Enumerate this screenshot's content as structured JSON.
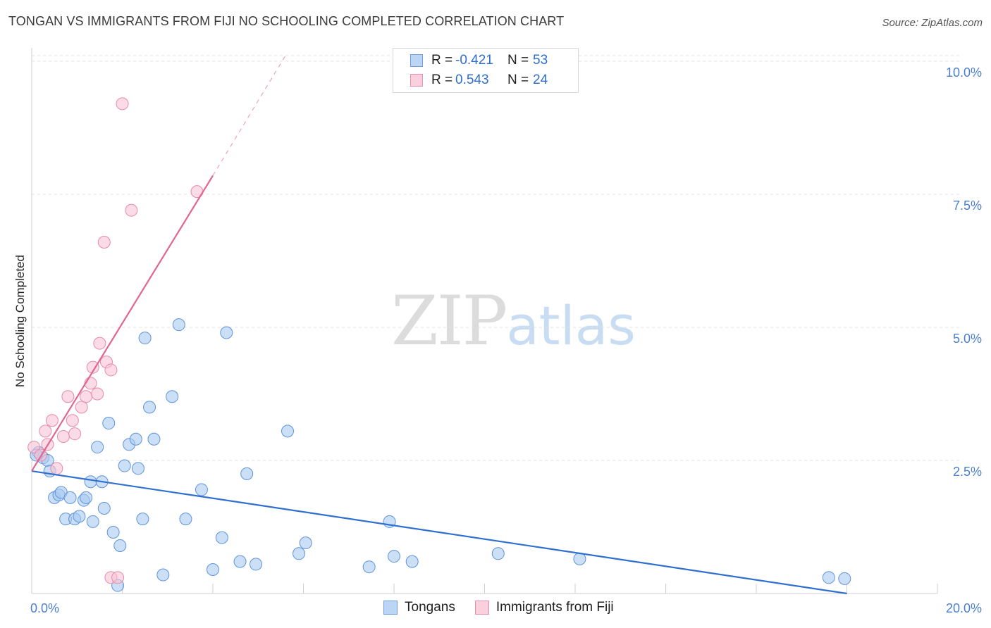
{
  "header": {
    "title": "TONGAN VS IMMIGRANTS FROM FIJI NO SCHOOLING COMPLETED CORRELATION CHART",
    "source": "Source: ZipAtlas.com"
  },
  "watermark": {
    "zip": "ZIP",
    "atlas": "atlas"
  },
  "legend": {
    "r_label": "R =",
    "n_label": "N =",
    "rows": [
      {
        "name": "Tongans",
        "r": "-0.421",
        "n": "53",
        "color": "#a9c9f0",
        "border": "#6f9fe0"
      },
      {
        "name": "Immigrants from Fiji",
        "r": "0.543",
        "n": "24",
        "color": "#f8c3d3",
        "border": "#ea8fae"
      }
    ]
  },
  "chart_data": {
    "type": "scatter",
    "title": "TONGAN VS IMMIGRANTS FROM FIJI NO SCHOOLING COMPLETED CORRELATION CHART",
    "xlabel": "",
    "ylabel": "No Schooling Completed",
    "xlim": [
      0,
      20
    ],
    "ylim": [
      0,
      10.25
    ],
    "x_tick_labels": [
      {
        "value": 0,
        "label": "0.0%"
      },
      {
        "value": 20,
        "label": "20.0%"
      }
    ],
    "y_tick_labels": [
      {
        "value": 2.5,
        "label": "2.5%"
      },
      {
        "value": 5.0,
        "label": "5.0%"
      },
      {
        "value": 7.5,
        "label": "7.5%"
      },
      {
        "value": 10.0,
        "label": "10.0%"
      }
    ],
    "series": [
      {
        "name": "Tongans",
        "color": "#a9c9f0",
        "stroke": "#5f93dc",
        "trend_color": "#2f6fd0",
        "trend": {
          "x0": 0,
          "y0": 2.3,
          "x1": 18.0,
          "y1": 0.0
        },
        "points": [
          [
            0.15,
            2.65
          ],
          [
            0.25,
            2.55
          ],
          [
            0.35,
            2.5
          ],
          [
            0.4,
            2.3
          ],
          [
            0.5,
            1.8
          ],
          [
            0.6,
            1.85
          ],
          [
            0.65,
            1.9
          ],
          [
            0.75,
            1.4
          ],
          [
            0.85,
            1.8
          ],
          [
            0.95,
            1.4
          ],
          [
            1.05,
            1.45
          ],
          [
            1.15,
            1.75
          ],
          [
            1.2,
            1.8
          ],
          [
            1.3,
            2.1
          ],
          [
            1.35,
            1.35
          ],
          [
            1.45,
            2.75
          ],
          [
            1.55,
            2.1
          ],
          [
            1.6,
            1.6
          ],
          [
            1.7,
            3.2
          ],
          [
            1.8,
            1.15
          ],
          [
            1.9,
            0.15
          ],
          [
            1.95,
            0.9
          ],
          [
            2.05,
            2.4
          ],
          [
            2.15,
            2.8
          ],
          [
            2.3,
            2.9
          ],
          [
            2.35,
            2.35
          ],
          [
            2.45,
            1.4
          ],
          [
            2.5,
            4.8
          ],
          [
            2.6,
            3.5
          ],
          [
            2.7,
            2.9
          ],
          [
            2.9,
            0.35
          ],
          [
            3.1,
            3.7
          ],
          [
            3.25,
            5.05
          ],
          [
            3.4,
            1.4
          ],
          [
            3.75,
            1.95
          ],
          [
            4.0,
            0.45
          ],
          [
            4.2,
            1.05
          ],
          [
            4.3,
            4.9
          ],
          [
            4.6,
            0.6
          ],
          [
            4.75,
            2.25
          ],
          [
            4.95,
            0.55
          ],
          [
            5.65,
            3.05
          ],
          [
            5.9,
            0.75
          ],
          [
            6.05,
            0.95
          ],
          [
            7.45,
            0.5
          ],
          [
            7.9,
            1.35
          ],
          [
            8.0,
            0.7
          ],
          [
            8.4,
            0.6
          ],
          [
            10.3,
            0.75
          ],
          [
            12.1,
            0.65
          ],
          [
            17.6,
            0.3
          ],
          [
            17.95,
            0.28
          ],
          [
            0.1,
            2.6
          ]
        ]
      },
      {
        "name": "Immigrants from Fiji",
        "color": "#f8c3d3",
        "stroke": "#e98aa9",
        "trend_color": "#e0668f",
        "trend": {
          "x0": 0,
          "y0": 2.3,
          "x1": 4.0,
          "y1": 7.85
        },
        "trend_ext": {
          "x0": 4.0,
          "y0": 7.85,
          "x1": 5.6,
          "y1": 10.1
        },
        "points": [
          [
            0.05,
            2.75
          ],
          [
            0.2,
            2.6
          ],
          [
            0.3,
            3.05
          ],
          [
            0.35,
            2.8
          ],
          [
            0.45,
            3.25
          ],
          [
            0.55,
            2.35
          ],
          [
            0.7,
            2.95
          ],
          [
            0.8,
            3.7
          ],
          [
            0.9,
            3.25
          ],
          [
            0.95,
            3.0
          ],
          [
            1.1,
            3.5
          ],
          [
            1.2,
            3.7
          ],
          [
            1.3,
            3.95
          ],
          [
            1.35,
            4.25
          ],
          [
            1.45,
            3.75
          ],
          [
            1.5,
            4.7
          ],
          [
            1.65,
            4.35
          ],
          [
            1.75,
            4.2
          ],
          [
            1.6,
            6.6
          ],
          [
            1.75,
            0.3
          ],
          [
            1.9,
            0.3
          ],
          [
            2.0,
            9.2
          ],
          [
            2.2,
            7.2
          ],
          [
            3.65,
            7.55
          ]
        ]
      }
    ]
  }
}
